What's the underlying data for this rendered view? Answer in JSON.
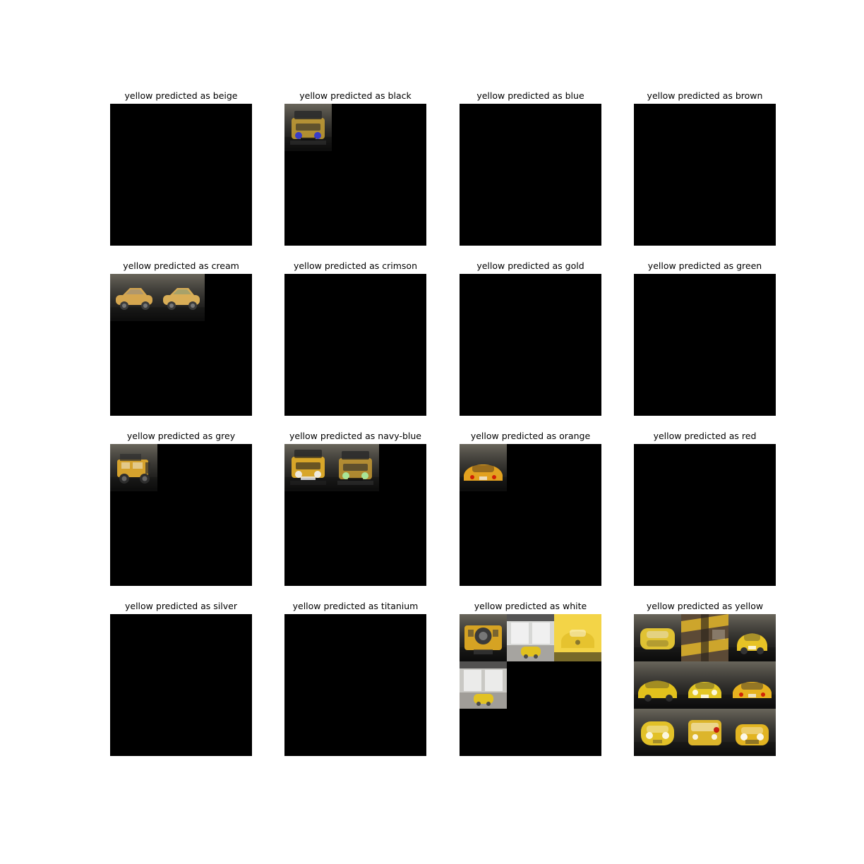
{
  "figure": {
    "panels": [
      {
        "title": "yellow predicted as beige",
        "thumbnails": []
      },
      {
        "title": "yellow predicted as black",
        "thumbnails": [
          {
            "scene": "offroad-front-dark",
            "colors": {
              "bg": "#6f6b60",
              "body": "#c9a135",
              "accent": "#2a2a2a",
              "light": "#2b33d8"
            }
          }
        ]
      },
      {
        "title": "yellow predicted as blue",
        "thumbnails": []
      },
      {
        "title": "yellow predicted as brown",
        "thumbnails": []
      },
      {
        "title": "yellow predicted as cream",
        "thumbnails": [
          {
            "scene": "sedan-side",
            "colors": {
              "bg": "#dcdad5",
              "body": "#d5a64f",
              "accent": "#3b3b3b",
              "light": "#9d8f7c"
            }
          },
          {
            "scene": "sedan-side",
            "colors": {
              "bg": "#e9e5db",
              "body": "#d9ae57",
              "accent": "#3a3a3a",
              "light": "#8e9b74"
            }
          }
        ]
      },
      {
        "title": "yellow predicted as crimson",
        "thumbnails": []
      },
      {
        "title": "yellow predicted as gold",
        "thumbnails": []
      },
      {
        "title": "yellow predicted as green",
        "thumbnails": []
      },
      {
        "title": "yellow predicted as grey",
        "thumbnails": [
          {
            "scene": "offroad-side",
            "colors": {
              "bg": "#8f8c86",
              "body": "#d5a22d",
              "accent": "#2d2d2d",
              "light": "#f2efe8"
            }
          }
        ]
      },
      {
        "title": "yellow predicted as navy-blue",
        "thumbnails": [
          {
            "scene": "offroad-front",
            "colors": {
              "bg": "#8c8f83",
              "body": "#d8a629",
              "accent": "#1f1f1f",
              "light": "#f2f2f2"
            }
          },
          {
            "scene": "offroad-front-dark",
            "colors": {
              "bg": "#6d6a62",
              "body": "#c79a32",
              "accent": "#2a2a2a",
              "light": "#a7f0a3"
            }
          }
        ]
      },
      {
        "title": "yellow predicted as orange",
        "thumbnails": [
          {
            "scene": "sports-rear",
            "colors": {
              "bg": "#a3a39e",
              "body": "#e2a11f",
              "accent": "#3b2a1a",
              "light": "#d9d6cd"
            }
          }
        ]
      },
      {
        "title": "yellow predicted as red",
        "thumbnails": []
      },
      {
        "title": "yellow predicted as silver",
        "thumbnails": []
      },
      {
        "title": "yellow predicted as titanium",
        "thumbnails": []
      },
      {
        "title": "yellow predicted as white",
        "thumbnails": [
          {
            "scene": "offroad-rear",
            "colors": {
              "bg": "#b59a5f",
              "body": "#d6a323",
              "accent": "#3a3a3a",
              "light": "#e8e2d2"
            }
          },
          {
            "scene": "storefront-car",
            "colors": {
              "bg": "#d7d8d6",
              "body": "#e1c11f",
              "accent": "#4b4b4b",
              "light": "#f4f4f4"
            }
          },
          {
            "scene": "beetle-rear",
            "colors": {
              "bg": "#f3d447",
              "body": "#e6c32f",
              "accent": "#2b2b2b",
              "light": "#ffffff"
            }
          },
          {
            "scene": "storefront-car",
            "colors": {
              "bg": "#c9c8c4",
              "body": "#e2c223",
              "accent": "#4a4a4a",
              "light": "#f1f1f1"
            }
          }
        ]
      },
      {
        "title": "yellow predicted as yellow",
        "thumbnails": [
          {
            "scene": "sedan-top",
            "colors": {
              "bg": "#a6a29a",
              "body": "#e0c233",
              "accent": "#2a2a2a",
              "light": "#e8e7e2"
            }
          },
          {
            "scene": "interior-frame",
            "colors": {
              "bg": "#5c4a36",
              "body": "#e0b52a",
              "accent": "#2b241c",
              "light": "#d7d1c6"
            }
          },
          {
            "scene": "hatch-rear",
            "colors": {
              "bg": "#d9d7d2",
              "body": "#e7c325",
              "accent": "#333333",
              "light": "#ffffff"
            }
          },
          {
            "scene": "hatch-side",
            "colors": {
              "bg": "#c7c6c2",
              "body": "#e2c11c",
              "accent": "#2d2d2d",
              "light": "#ffffff"
            }
          },
          {
            "scene": "coupe-front",
            "colors": {
              "bg": "#8f918c",
              "body": "#e3c624",
              "accent": "#2a2a2a",
              "light": "#ffffff"
            }
          },
          {
            "scene": "sports-rear",
            "colors": {
              "bg": "#bfc2c8",
              "body": "#e7b21f",
              "accent": "#2c2c2c",
              "light": "#efefef"
            }
          },
          {
            "scene": "fiat-front",
            "colors": {
              "bg": "#b8b5ad",
              "body": "#e2c128",
              "accent": "#2b2b2b",
              "light": "#ffffff"
            }
          },
          {
            "scene": "van-front",
            "colors": {
              "bg": "#9a9a95",
              "body": "#dcb52b",
              "accent": "#2a2a2a",
              "light": "#ffffff"
            }
          },
          {
            "scene": "classic-front",
            "colors": {
              "bg": "#d7d6d2",
              "body": "#e2b421",
              "accent": "#2a2a2a",
              "light": "#ffffff"
            }
          }
        ]
      }
    ]
  }
}
